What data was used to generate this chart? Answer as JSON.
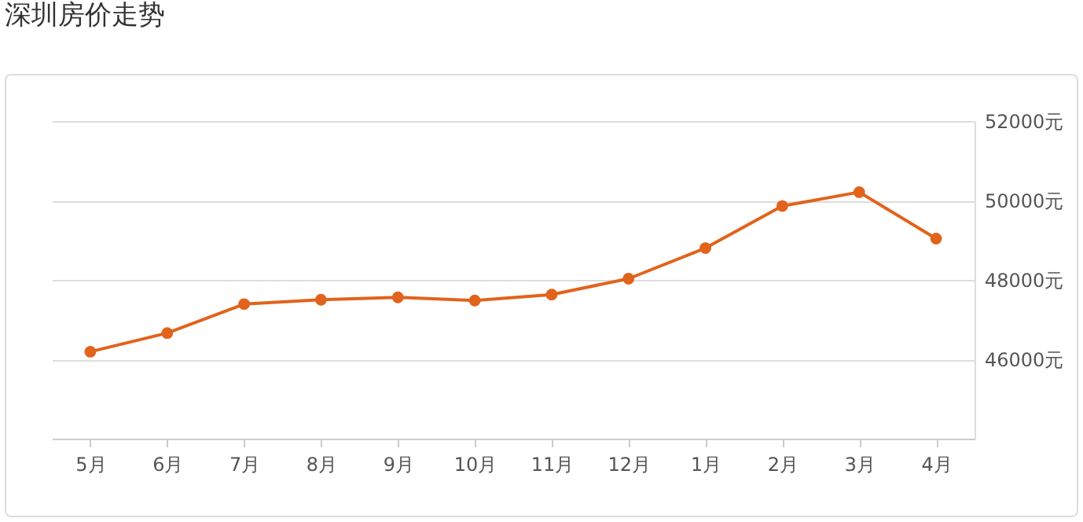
{
  "chart_data": {
    "type": "line",
    "title": "深圳房价走势",
    "categories": [
      "5月",
      "6月",
      "7月",
      "8月",
      "9月",
      "10月",
      "11月",
      "12月",
      "1月",
      "2月",
      "3月",
      "4月"
    ],
    "series": [
      {
        "color": "#e2631c",
        "values": [
          46190,
          46660,
          47390,
          47500,
          47560,
          47480,
          47630,
          48030,
          48800,
          49860,
          50210,
          49040
        ]
      }
    ],
    "ylim": [
      44000,
      52000
    ],
    "yticks": [
      {
        "value": 46000,
        "label": "46000元"
      },
      {
        "value": 48000,
        "label": "48000元"
      },
      {
        "value": 50000,
        "label": "50000元"
      },
      {
        "value": 52000,
        "label": "52000元"
      }
    ],
    "grid": "y",
    "marker": "circle",
    "line_style": "solid"
  }
}
